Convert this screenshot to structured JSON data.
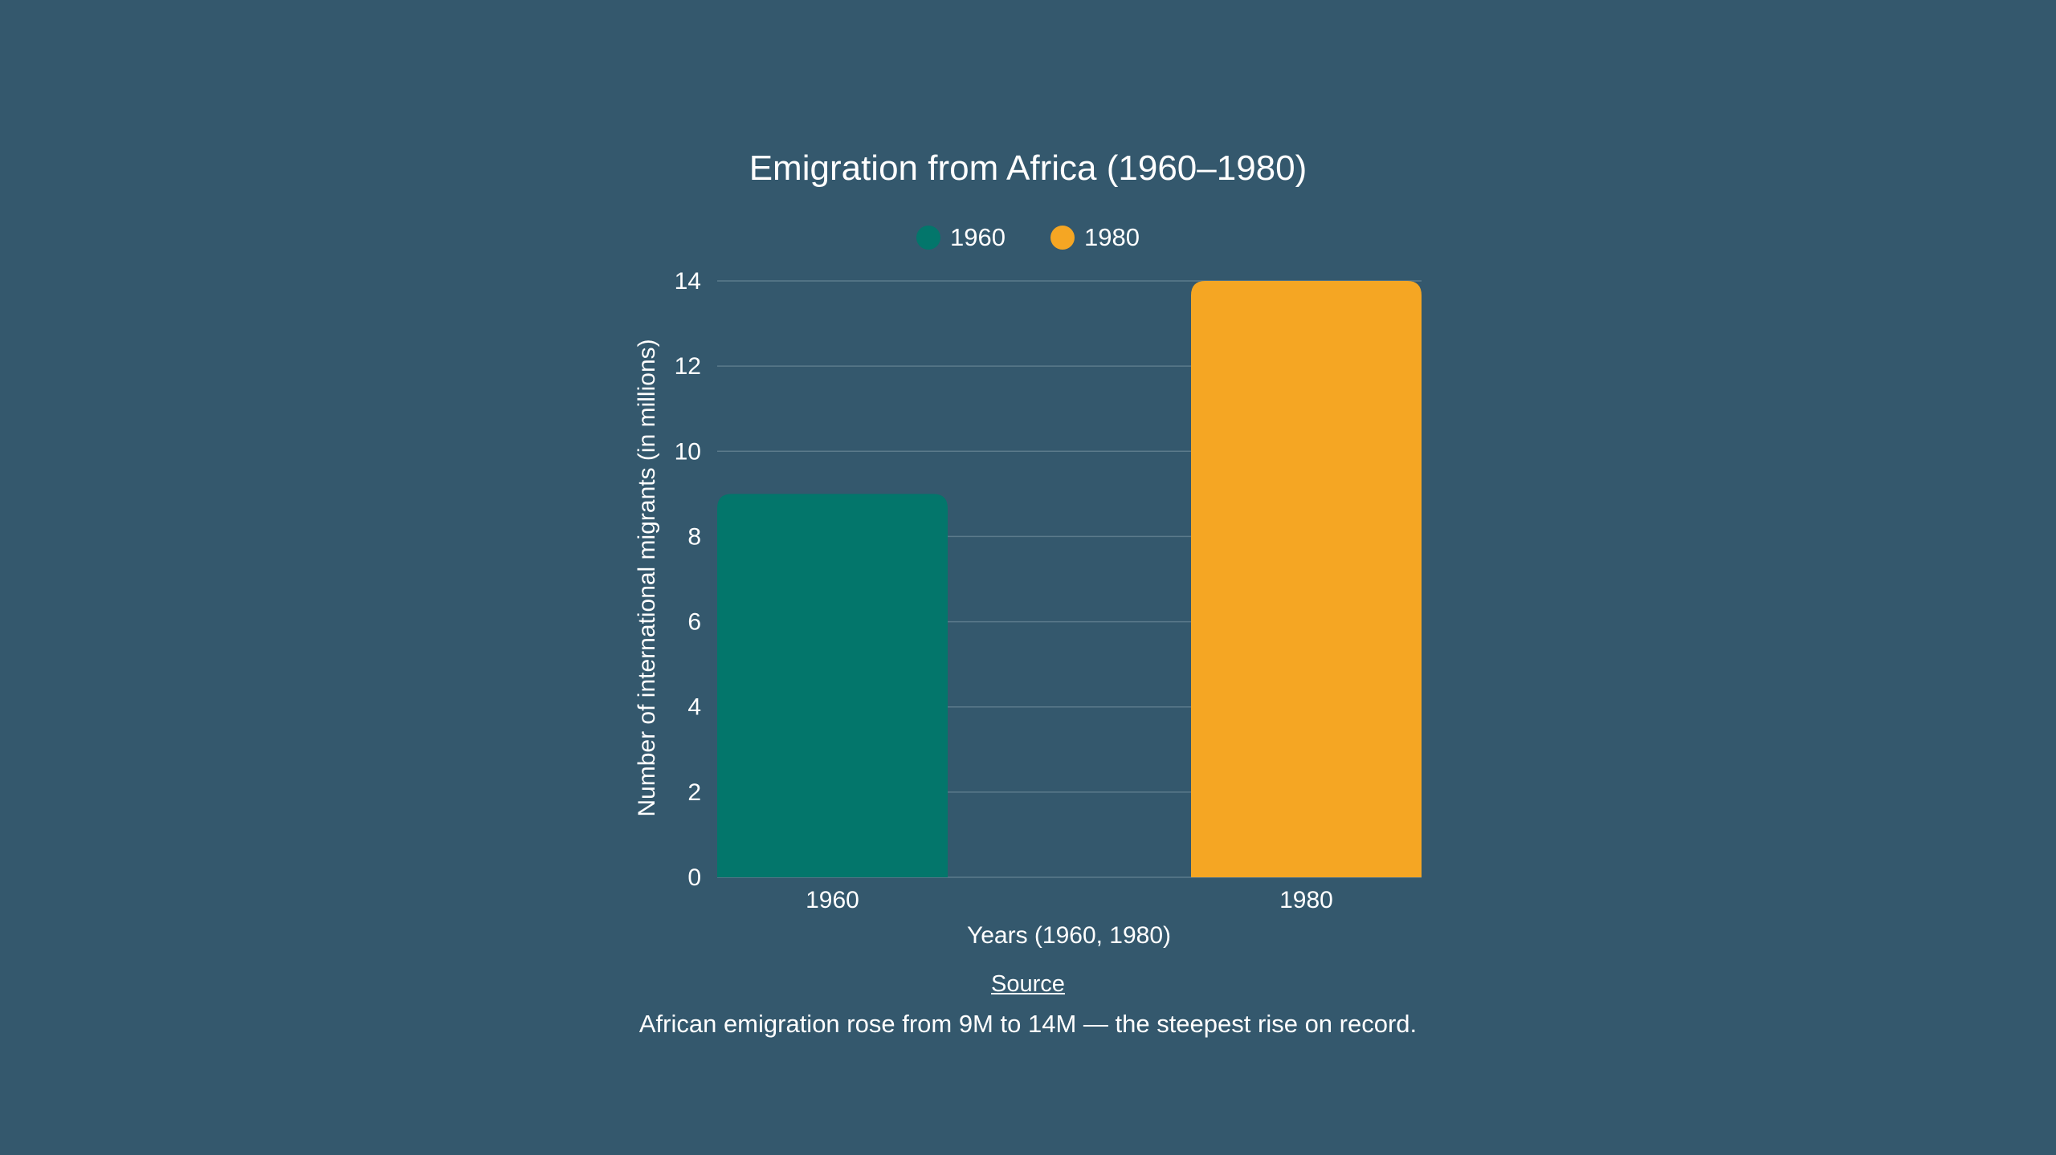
{
  "colors": {
    "background": "#34586d",
    "grid": "#5b7a8b",
    "text": "#ffffff"
  },
  "chart_data": {
    "type": "bar",
    "title": "Emigration from Africa (1960–1980)",
    "categories": [
      "1960",
      "1980"
    ],
    "values": [
      9,
      14
    ],
    "bar_colors": [
      "#03766b",
      "#f5a623"
    ],
    "legend": [
      {
        "label": "1960",
        "color": "#03766b"
      },
      {
        "label": "1980",
        "color": "#f5a623"
      }
    ],
    "legend_position": "top-center",
    "xlabel": "Years (1960, 1980)",
    "ylabel": "Number of international migrants (in millions)",
    "ylim": [
      0,
      14
    ],
    "yticks": [
      0,
      2,
      4,
      6,
      8,
      10,
      12,
      14
    ],
    "grid": true
  },
  "source_label": "Source",
  "caption": "African emigration rose from 9M to 14M — the steepest rise on record."
}
